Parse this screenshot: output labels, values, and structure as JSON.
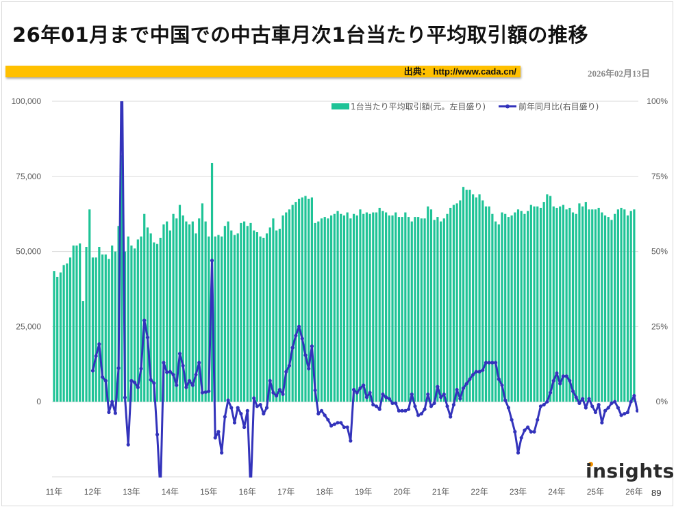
{
  "title": "26年01月まで中国での中古車月次1台当たり平均取引額の推移",
  "source": "出典： http://www.cada.cn/",
  "date": "2026年02月13日",
  "page_number": "89",
  "logo_text": "insights",
  "colors": {
    "bar": "#1ec396",
    "line": "#3333bb",
    "banner": "#ffc000"
  },
  "chart_data": {
    "type": "bar+line",
    "x_start": "2011-01",
    "x_tick_labels": [
      "11年",
      "12年",
      "13年",
      "14年",
      "15年",
      "16年",
      "17年",
      "18年",
      "19年",
      "20年",
      "21年",
      "22年",
      "23年",
      "24年",
      "25年",
      "26年"
    ],
    "left_axis": {
      "ylim": [
        -25000,
        100000
      ],
      "tick_labels": [
        "100,000",
        "75,000",
        "50,000",
        "25,000",
        "0"
      ]
    },
    "right_axis": {
      "ylim": [
        -25,
        100
      ],
      "tick_labels": [
        "100%",
        "75%",
        "50%",
        "25%",
        "0%"
      ]
    },
    "grid": true,
    "legend_position": "top-right",
    "series": [
      {
        "name": "1台当たり平均取引額(元。左目盛り)",
        "axis": "left",
        "type": "bar",
        "start": "2011-01",
        "values": [
          43500,
          41500,
          43000,
          45500,
          46000,
          48000,
          52000,
          52000,
          52700,
          33500,
          51500,
          64000,
          48000,
          48000,
          51500,
          49000,
          49000,
          47500,
          52000,
          50000,
          58500,
          82000,
          50000,
          55000,
          52000,
          51000,
          54000,
          55000,
          62500,
          58000,
          56000,
          53000,
          52500,
          54500,
          59000,
          60000,
          57000,
          62500,
          61000,
          65500,
          62000,
          60000,
          59000,
          60000,
          56000,
          61000,
          66000,
          60000,
          55000,
          79500,
          55000,
          55500,
          55000,
          58500,
          60000,
          57000,
          55500,
          56000,
          59500,
          60000,
          58500,
          59500,
          57000,
          56500,
          55000,
          54500,
          56000,
          58000,
          61000,
          57000,
          57500,
          62000,
          63000,
          64000,
          65500,
          66500,
          67500,
          68000,
          68500,
          67500,
          68000,
          59500,
          60000,
          61000,
          61500,
          61000,
          62000,
          62500,
          63500,
          62500,
          62000,
          63000,
          61000,
          62500,
          62000,
          64000,
          62500,
          63000,
          62500,
          63000,
          63000,
          64500,
          63500,
          63000,
          62000,
          62000,
          63000,
          61500,
          61500,
          63000,
          61500,
          60000,
          61500,
          61500,
          61000,
          61000,
          65000,
          64000,
          60500,
          61500,
          60000,
          61000,
          62500,
          64500,
          65500,
          66000,
          67000,
          71500,
          70500,
          70500,
          69000,
          68000,
          69000,
          67000,
          65000,
          65000,
          62500,
          60000,
          59000,
          63000,
          62500,
          61500,
          62000,
          63000,
          64000,
          63500,
          62500,
          63500,
          65500,
          65000,
          65000,
          64500,
          66500,
          69000,
          68500,
          65000,
          64500,
          65000,
          65500,
          64000,
          64500,
          63000,
          62500,
          66000,
          65000,
          66500,
          64000,
          64000,
          64000,
          64500,
          63000,
          62000,
          61500,
          60500,
          62500,
          64000,
          64500,
          64000,
          62000,
          63500,
          64000
        ]
      },
      {
        "name": "前年同月比(右目盛り)",
        "axis": "right",
        "type": "line",
        "start": "2012-01",
        "values": [
          10.3,
          15.2,
          19.2,
          8.2,
          7,
          -3.5,
          0,
          -3.8,
          11.2,
          120,
          1.4,
          -14.3,
          7,
          6.4,
          4.8,
          11,
          27.1,
          21.4,
          7.3,
          6.2,
          -10.9,
          -30,
          13,
          9.8,
          10,
          9,
          5.5,
          16,
          12,
          4.8,
          7,
          5.5,
          9,
          13,
          3,
          3.2,
          3.5,
          47,
          -12,
          -10,
          -17,
          -5,
          0.5,
          -2,
          -7,
          -2,
          -4,
          -8.5,
          -3,
          -30,
          1.2,
          -1.5,
          -1,
          -4,
          -2,
          7,
          3,
          2,
          4,
          2.5,
          10,
          12,
          18,
          22,
          25,
          21,
          15.5,
          11,
          18.5,
          3.8,
          -4,
          -3,
          -4.5,
          -6,
          -8,
          -7.5,
          -7,
          -7,
          -8.5,
          -8.5,
          -13,
          4,
          3,
          4.5,
          5.5,
          1.5,
          3,
          -1,
          -1.5,
          -2.5,
          2.5,
          1.5,
          1,
          -0.5,
          -0.5,
          -3,
          -3,
          -3,
          -2.5,
          2.5,
          -1.5,
          -4.5,
          -4,
          -2.5,
          2.5,
          -1.5,
          -0.5,
          5,
          1.5,
          2.5,
          -1.5,
          -5,
          -1,
          4,
          1,
          4.5,
          6,
          7.5,
          9,
          10,
          10,
          10.5,
          13,
          13,
          13,
          13,
          7.5,
          5.5,
          0.5,
          -2,
          -6,
          -10,
          -17,
          -12,
          -9.5,
          -8.5,
          -10,
          -10,
          -6,
          -1.5,
          -1,
          0,
          3,
          7,
          9.5,
          6,
          8.5,
          8.5,
          7,
          3.5,
          1.5,
          -0.5,
          1,
          -2,
          1,
          -1.5,
          -3.5,
          -1,
          -7,
          -3,
          -2,
          -0.5,
          0,
          -2,
          -4.5,
          -4,
          -3.5,
          0,
          2,
          -3
        ]
      }
    ]
  }
}
